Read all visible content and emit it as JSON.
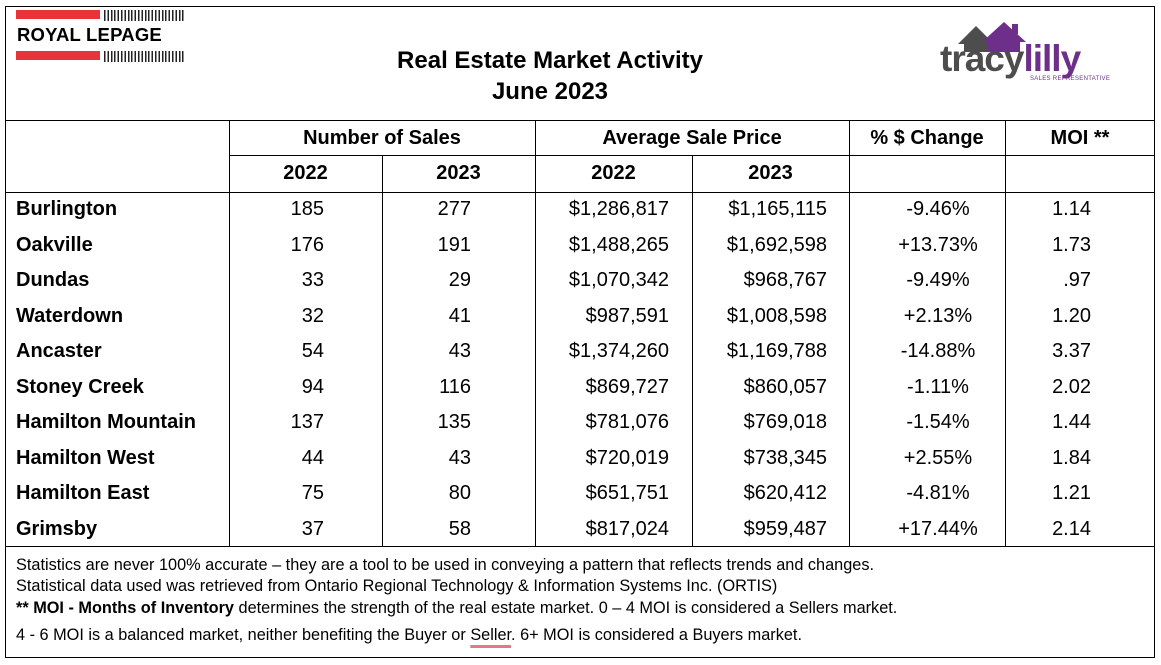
{
  "header": {
    "brand_left": "ROYAL LEPAGE",
    "title_line1": "Real Estate Market Activity",
    "title_line2": "June 2023",
    "brand_right_part1": "tracy",
    "brand_right_part2": "lilly",
    "brand_right_sub": "SALES REPRESENTATIVE"
  },
  "table": {
    "group_headers": {
      "sales": "Number of Sales",
      "price": "Average Sale Price",
      "change": "% $ Change",
      "moi": "MOI **"
    },
    "year_headers": [
      "2022",
      "2023",
      "2022",
      "2023"
    ],
    "rows": [
      {
        "city": "Burlington",
        "sales_2022": "185",
        "sales_2023": "277",
        "price_2022": "$1,286,817",
        "price_2023": "$1,165,115",
        "change": "-9.46%",
        "moi": "1.14"
      },
      {
        "city": "Oakville",
        "sales_2022": "176",
        "sales_2023": "191",
        "price_2022": "$1,488,265",
        "price_2023": "$1,692,598",
        "change": "+13.73%",
        "moi": "1.73"
      },
      {
        "city": "Dundas",
        "sales_2022": "33",
        "sales_2023": "29",
        "price_2022": "$1,070,342",
        "price_2023": "$968,767",
        "change": "-9.49%",
        "moi": ".97"
      },
      {
        "city": "Waterdown",
        "sales_2022": "32",
        "sales_2023": "41",
        "price_2022": "$987,591",
        "price_2023": "$1,008,598",
        "change": "+2.13%",
        "moi": "1.20"
      },
      {
        "city": "Ancaster",
        "sales_2022": "54",
        "sales_2023": "43",
        "price_2022": "$1,374,260",
        "price_2023": "$1,169,788",
        "change": "-14.88%",
        "moi": "3.37"
      },
      {
        "city": "Stoney Creek",
        "sales_2022": "94",
        "sales_2023": "116",
        "price_2022": "$869,727",
        "price_2023": "$860,057",
        "change": "-1.11%",
        "moi": "2.02"
      },
      {
        "city": "Hamilton Mountain",
        "sales_2022": "137",
        "sales_2023": "135",
        "price_2022": "$781,076",
        "price_2023": "$769,018",
        "change": "-1.54%",
        "moi": "1.44"
      },
      {
        "city": "Hamilton West",
        "sales_2022": "44",
        "sales_2023": "43",
        "price_2022": "$720,019",
        "price_2023": "$738,345",
        "change": "+2.55%",
        "moi": "1.84"
      },
      {
        "city": "Hamilton East",
        "sales_2022": "75",
        "sales_2023": "80",
        "price_2022": "$651,751",
        "price_2023": "$620,412",
        "change": "-4.81%",
        "moi": "1.21"
      },
      {
        "city": "Grimsby",
        "sales_2022": "37",
        "sales_2023": "58",
        "price_2022": "$817,024",
        "price_2023": "$959,487",
        "change": "+17.44%",
        "moi": "2.14"
      }
    ]
  },
  "footer": {
    "line1": "Statistics are never 100% accurate – they are a tool to be used in conveying a pattern that reflects trends and changes.",
    "line2": "Statistical data used was retrieved from Ontario Regional Technology & Information Systems Inc. (ORTIS)",
    "line3_bold": "** MOI - Months of Inventory",
    "line3_rest": " determines the strength of the real estate market. 0 – 4 MOI is considered a Sellers market.",
    "line4_a": "4 - 6 MOI is a balanced market, neither benefiting the Buyer or ",
    "line4_b": "Seller",
    "line4_c": ". 6+ MOI is considered a Buyers market."
  },
  "colors": {
    "royal_lepage_red": "#e8333a",
    "tracylilly_gray": "#4d4d4d",
    "tracylilly_purple": "#6e2f8a"
  }
}
